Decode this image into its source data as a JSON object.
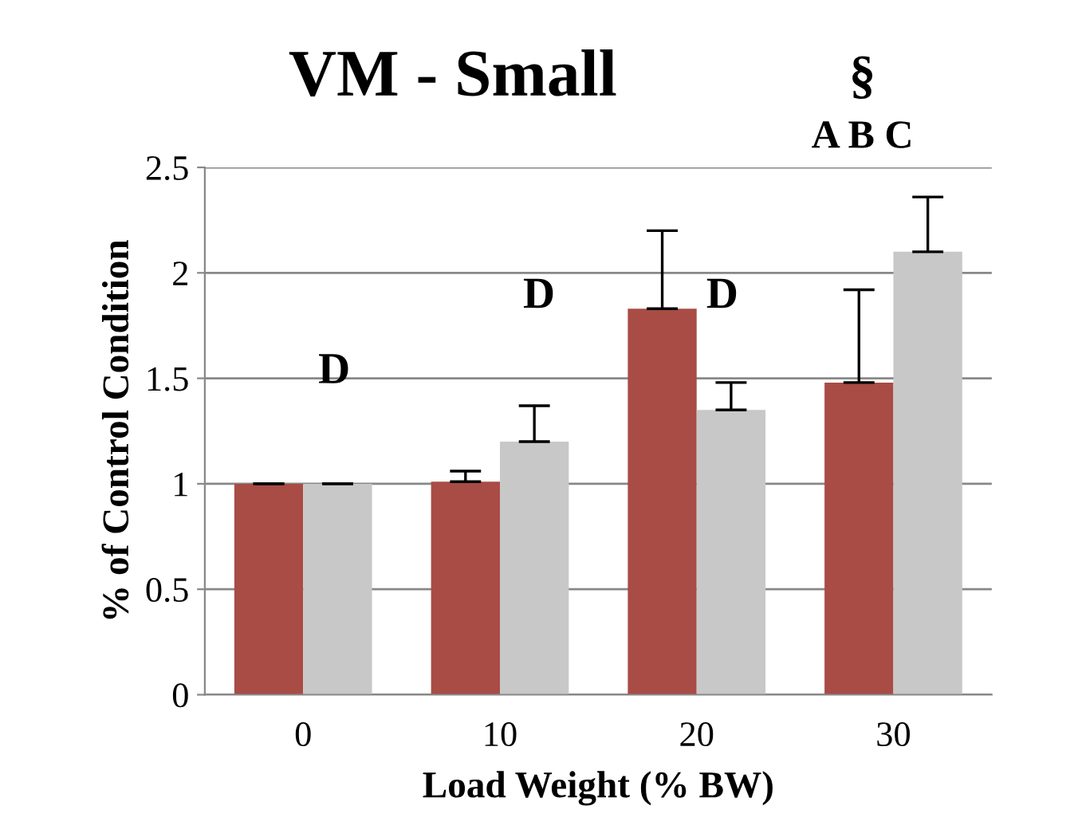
{
  "chart_data": {
    "type": "bar",
    "title": "VM - Small",
    "xlabel": "Load Weight (% BW)",
    "ylabel": "% of Control Condition",
    "categories": [
      "0",
      "10",
      "20",
      "30"
    ],
    "series": [
      {
        "color": "#a84c45",
        "values": [
          1.0,
          1.01,
          1.83,
          1.48
        ],
        "errors": [
          [
            1.0,
            1.0
          ],
          [
            1.01,
            1.06
          ],
          [
            1.83,
            2.2
          ],
          [
            1.48,
            1.92
          ]
        ]
      },
      {
        "color": "#c8c8c8",
        "values": [
          1.0,
          1.2,
          1.35,
          2.1
        ],
        "errors": [
          [
            1.0,
            1.0
          ],
          [
            1.2,
            1.37
          ],
          [
            1.35,
            1.48
          ],
          [
            2.1,
            2.36
          ]
        ]
      }
    ],
    "ylim": [
      0,
      2.5
    ],
    "yticks": [
      0,
      0.5,
      1,
      1.5,
      2,
      2.5
    ],
    "grid": "y",
    "legend": false,
    "annotations": [
      "D",
      "D",
      "D",
      "§",
      "A B C"
    ]
  }
}
